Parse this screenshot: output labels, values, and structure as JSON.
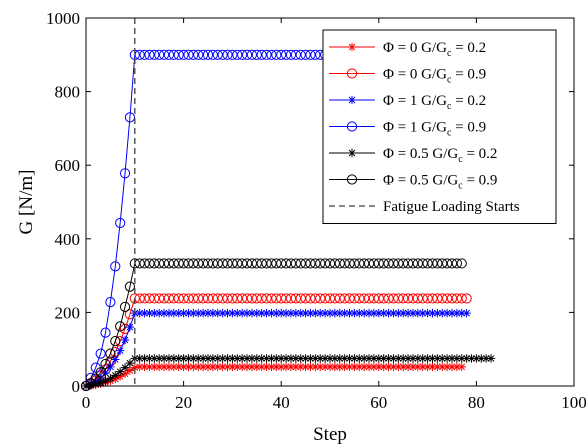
{
  "chart_data": {
    "type": "scatter",
    "xlabel": "Step",
    "ylabel": "G [N/m]",
    "xlim": [
      0,
      100
    ],
    "ylim": [
      0,
      1000
    ],
    "xticks": [
      "0",
      "20",
      "40",
      "60",
      "80",
      "100"
    ],
    "yticks": [
      "0",
      "200",
      "400",
      "600",
      "800",
      "1000"
    ],
    "grid": false,
    "legend_position": "top-right",
    "vline": {
      "x": 10,
      "name": "Fatigue Loading Starts",
      "color": "#404040"
    },
    "series": [
      {
        "name": "Φ = 0 G/G_c = 0.2",
        "legend_main": "Φ = 0 G/G",
        "legend_sub": "c",
        "legend_tail": " = 0.2",
        "color": "#ff0000",
        "marker": "star",
        "ramp": [
          0,
          1.5,
          3.5,
          6,
          9.5,
          14,
          19,
          26,
          33,
          42,
          50
        ],
        "plateau": 52,
        "last_step": 77
      },
      {
        "name": "Φ = 0 G/G_c = 0.9",
        "legend_main": "Φ = 0 G/G",
        "legend_sub": "c",
        "legend_tail": " = 0.9",
        "color": "#ff0000",
        "marker": "circle",
        "ramp": [
          0,
          6,
          15,
          28,
          45,
          67,
          92,
          122,
          155,
          195,
          238
        ],
        "plateau": 238,
        "last_step": 78
      },
      {
        "name": "Φ = 1 G/G_c = 0.2",
        "legend_main": "Φ = 1 G/G",
        "legend_sub": "c",
        "legend_tail": " = 0.2",
        "color": "#0000ff",
        "marker": "star",
        "ramp": [
          0,
          5,
          12,
          22,
          35,
          52,
          72,
          96,
          125,
          160,
          198
        ],
        "plateau": 198,
        "last_step": 78
      },
      {
        "name": "Φ = 1 G/G_c = 0.9",
        "legend_main": "Φ = 1 G/G",
        "legend_sub": "c",
        "legend_tail": " = 0.9",
        "color": "#0000ff",
        "marker": "circle",
        "ramp": [
          0,
          22,
          50,
          88,
          145,
          228,
          325,
          443,
          578,
          730,
          900
        ],
        "plateau": 900,
        "last_step": 77
      },
      {
        "name": "Φ = 0.5 G/G_c = 0.2",
        "legend_main": "Φ = 0.5 G/G",
        "legend_sub": "c",
        "legend_tail": " = 0.2",
        "color": "#000000",
        "marker": "star",
        "ramp": [
          0,
          2,
          5,
          9,
          14,
          21,
          29,
          39,
          50,
          62,
          75
        ],
        "plateau": 75,
        "last_step": 83
      },
      {
        "name": "Φ = 0.5 G/G_c = 0.9",
        "legend_main": "Φ = 0.5 G/G",
        "legend_sub": "c",
        "legend_tail": " = 0.9",
        "color": "#000000",
        "marker": "circle",
        "ramp": [
          0,
          8,
          20,
          37,
          60,
          88,
          122,
          162,
          215,
          270,
          333
        ],
        "plateau": 333,
        "last_step": 77
      }
    ]
  }
}
